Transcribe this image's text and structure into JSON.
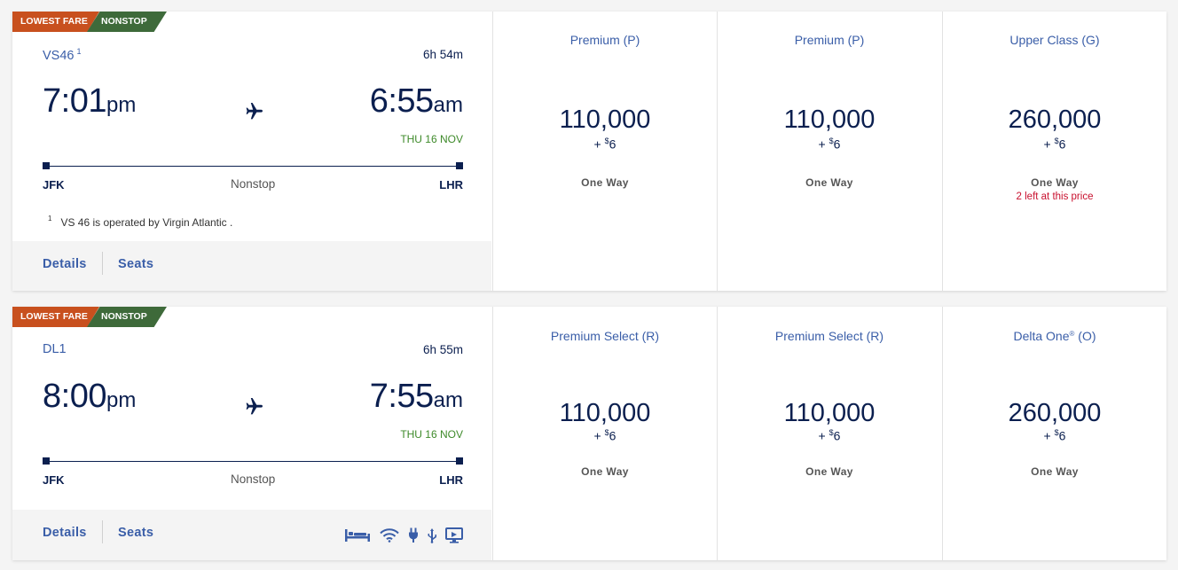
{
  "flights": [
    {
      "tags": [
        "LOWEST FARE",
        "NONSTOP"
      ],
      "flight_number": "VS46",
      "footnote_marker": "1",
      "duration": "6h 54m",
      "departure_time": "7:01",
      "departure_ampm": "pm",
      "arrival_time": "6:55",
      "arrival_ampm": "am",
      "arrival_date": "THU 16 NOV",
      "origin": "JFK",
      "destination": "LHR",
      "stops": "Nonstop",
      "footnote": "VS 46 is operated by Virgin Atlantic .",
      "details_label": "Details",
      "seats_label": "Seats",
      "fares": [
        {
          "cabin": "Premium (P)",
          "miles": "110,000",
          "fee_prefix": "+ ",
          "fee_currency": "$",
          "fee_amount": "6",
          "trip": "One Way",
          "availability": ""
        },
        {
          "cabin": "Premium (P)",
          "miles": "110,000",
          "fee_prefix": "+ ",
          "fee_currency": "$",
          "fee_amount": "6",
          "trip": "One Way",
          "availability": ""
        },
        {
          "cabin": "Upper Class (G)",
          "miles": "260,000",
          "fee_prefix": "+ ",
          "fee_currency": "$",
          "fee_amount": "6",
          "trip": "One Way",
          "availability": "2 left at this price"
        }
      ]
    },
    {
      "tags": [
        "LOWEST FARE",
        "NONSTOP"
      ],
      "flight_number": "DL1",
      "duration": "6h 55m",
      "departure_time": "8:00",
      "departure_ampm": "pm",
      "arrival_time": "7:55",
      "arrival_ampm": "am",
      "arrival_date": "THU 16 NOV",
      "origin": "JFK",
      "destination": "LHR",
      "stops": "Nonstop",
      "details_label": "Details",
      "seats_label": "Seats",
      "amenities": [
        "flat-bed-icon",
        "wifi-icon",
        "power-outlet-icon",
        "usb-icon",
        "entertainment-screen-icon"
      ],
      "fares": [
        {
          "cabin": "Premium Select (R)",
          "miles": "110,000",
          "fee_prefix": "+ ",
          "fee_currency": "$",
          "fee_amount": "6",
          "trip": "One Way"
        },
        {
          "cabin": "Premium Select (R)",
          "miles": "110,000",
          "fee_prefix": "+ ",
          "fee_currency": "$",
          "fee_amount": "6",
          "trip": "One Way"
        },
        {
          "cabin_main": "Delta One",
          "cabin_mark": "®",
          "cabin_class": " (O)",
          "miles": "260,000",
          "fee_prefix": "+ ",
          "fee_currency": "$",
          "fee_amount": "6",
          "trip": "One Way"
        }
      ]
    }
  ],
  "colors": {
    "navy": "#0b1f4f",
    "link_blue": "#3a5ea8",
    "lowest_fare_tag": "#c8501e",
    "nonstop_tag": "#3e6a3a",
    "date_green": "#3e8a2a",
    "alert_red": "#c8102e"
  }
}
